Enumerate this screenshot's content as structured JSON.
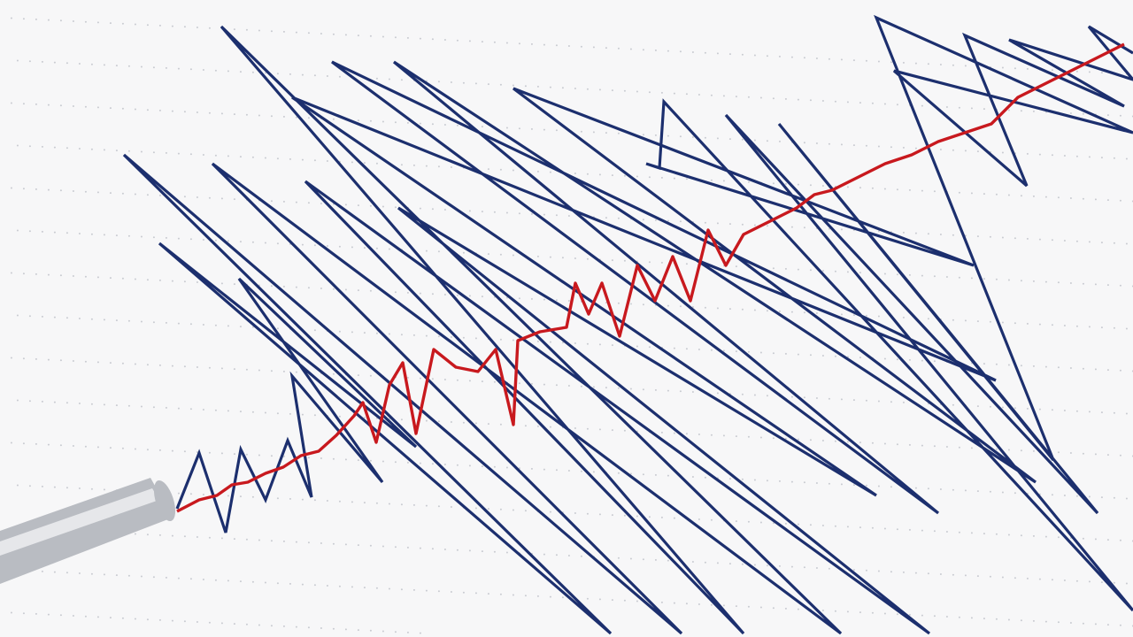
{
  "scene": {
    "subject": "seismograph-trace",
    "colors": {
      "paper": "#f7f7f8",
      "grid_dots": "#c9cbd1",
      "trace_blue": "#1c2f6e",
      "trace_red": "#c8191e",
      "stylus": "#b9bcc2"
    }
  }
}
